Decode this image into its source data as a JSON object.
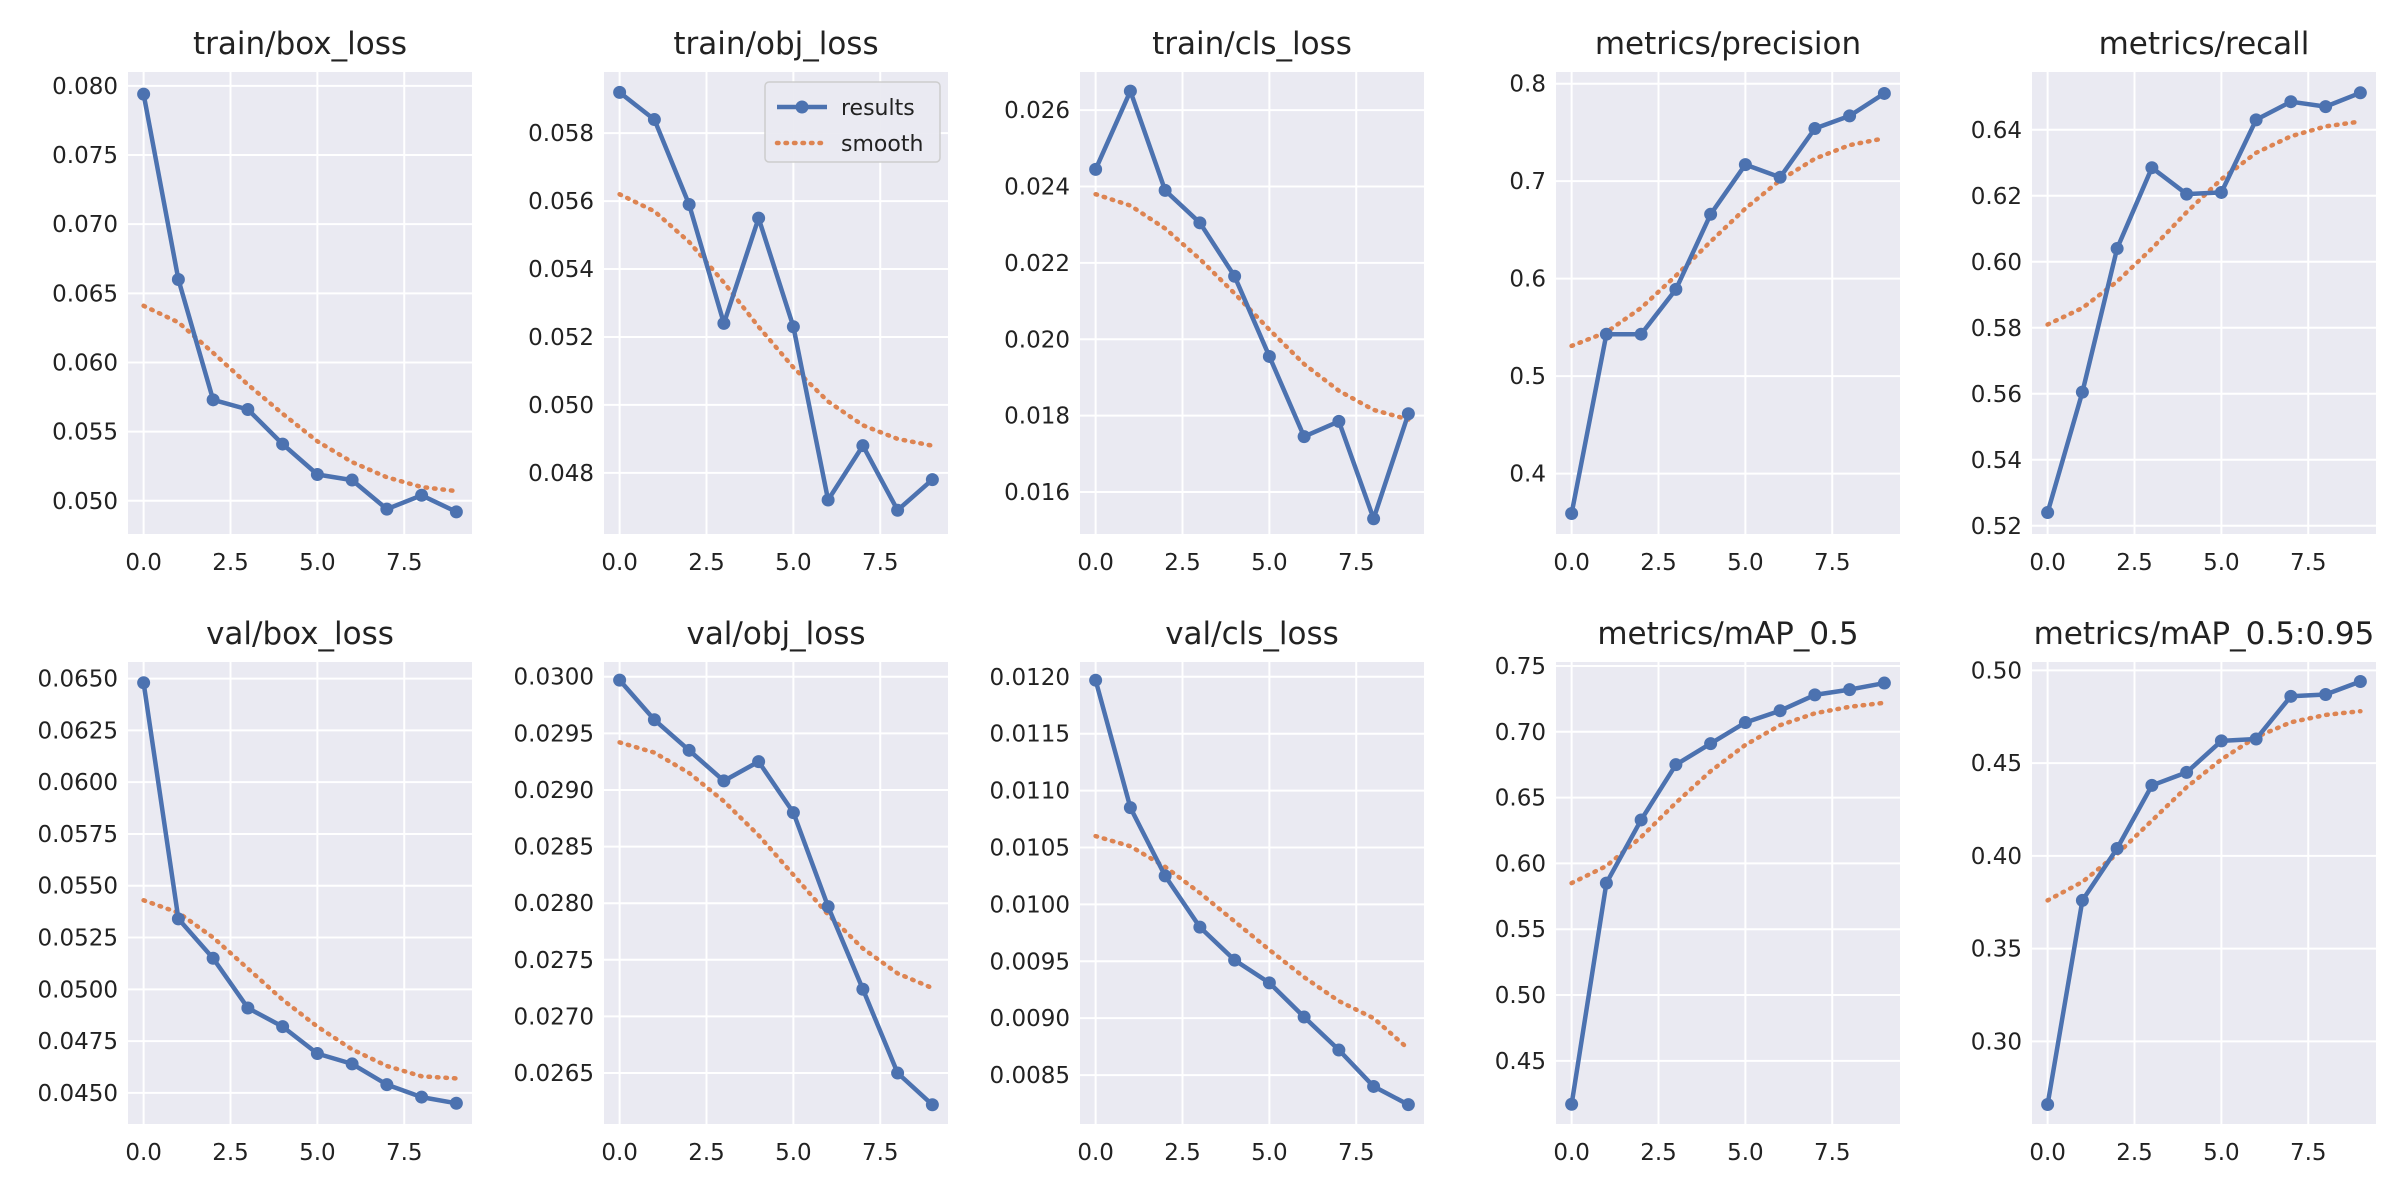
{
  "chart_data": [
    {
      "type": "line",
      "title": "train/box_loss",
      "x": [
        0,
        1,
        2,
        3,
        4,
        5,
        6,
        7,
        8,
        9
      ],
      "series": [
        {
          "name": "results",
          "values": [
            0.0794,
            0.066,
            0.0573,
            0.0566,
            0.0541,
            0.0519,
            0.0515,
            0.0494,
            0.0504,
            0.0492
          ]
        },
        {
          "name": "smooth",
          "values": [
            0.0641,
            0.0629,
            0.0607,
            0.0584,
            0.0563,
            0.0543,
            0.0528,
            0.0517,
            0.051,
            0.0507
          ]
        }
      ],
      "xlim": [
        -0.45,
        9.45
      ],
      "ylim": [
        0.0476,
        0.081
      ],
      "xticks": [
        0,
        2.5,
        5,
        7.5
      ],
      "xtick_labels": [
        "0.0",
        "2.5",
        "5.0",
        "7.5"
      ],
      "yticks": [
        0.05,
        0.055,
        0.06,
        0.065,
        0.07,
        0.075,
        0.08
      ],
      "ytick_labels": [
        "0.050",
        "0.055",
        "0.060",
        "0.065",
        "0.070",
        "0.075",
        "0.080"
      ],
      "legend": false
    },
    {
      "type": "line",
      "title": "train/obj_loss",
      "x": [
        0,
        1,
        2,
        3,
        4,
        5,
        6,
        7,
        8,
        9
      ],
      "series": [
        {
          "name": "results",
          "values": [
            0.0592,
            0.0584,
            0.0559,
            0.0524,
            0.0555,
            0.0523,
            0.0472,
            0.0488,
            0.0469,
            0.0478
          ]
        },
        {
          "name": "smooth",
          "values": [
            0.0562,
            0.0557,
            0.0548,
            0.0536,
            0.0523,
            0.0511,
            0.0501,
            0.0494,
            0.049,
            0.0488
          ]
        }
      ],
      "xlim": [
        -0.45,
        9.45
      ],
      "ylim": [
        0.0462,
        0.0598
      ],
      "xticks": [
        0,
        2.5,
        5,
        7.5
      ],
      "xtick_labels": [
        "0.0",
        "2.5",
        "5.0",
        "7.5"
      ],
      "yticks": [
        0.048,
        0.05,
        0.052,
        0.054,
        0.056,
        0.058
      ],
      "ytick_labels": [
        "0.048",
        "0.050",
        "0.052",
        "0.054",
        "0.056",
        "0.058"
      ],
      "legend": true,
      "legend_position": "top-right"
    },
    {
      "type": "line",
      "title": "train/cls_loss",
      "x": [
        0,
        1,
        2,
        3,
        4,
        5,
        6,
        7,
        8,
        9
      ],
      "series": [
        {
          "name": "results",
          "values": [
            0.02445,
            0.0265,
            0.0239,
            0.02305,
            0.02165,
            0.01955,
            0.01745,
            0.01785,
            0.0153,
            0.01805
          ]
        },
        {
          "name": "smooth",
          "values": [
            0.0238,
            0.0235,
            0.0229,
            0.0221,
            0.0212,
            0.02025,
            0.01935,
            0.01865,
            0.01815,
            0.0179
          ]
        }
      ],
      "xlim": [
        -0.45,
        9.45
      ],
      "ylim": [
        0.0149,
        0.027
      ],
      "xticks": [
        0,
        2.5,
        5,
        7.5
      ],
      "xtick_labels": [
        "0.0",
        "2.5",
        "5.0",
        "7.5"
      ],
      "yticks": [
        0.016,
        0.018,
        0.02,
        0.022,
        0.024,
        0.026
      ],
      "ytick_labels": [
        "0.016",
        "0.018",
        "0.020",
        "0.022",
        "0.024",
        "0.026"
      ],
      "legend": false
    },
    {
      "type": "line",
      "title": "metrics/precision",
      "x": [
        0,
        1,
        2,
        3,
        4,
        5,
        6,
        7,
        8,
        9
      ],
      "series": [
        {
          "name": "results",
          "values": [
            0.359,
            0.543,
            0.543,
            0.589,
            0.666,
            0.717,
            0.704,
            0.754,
            0.767,
            0.79
          ]
        },
        {
          "name": "smooth",
          "values": [
            0.531,
            0.545,
            0.57,
            0.603,
            0.638,
            0.672,
            0.701,
            0.723,
            0.737,
            0.744
          ]
        }
      ],
      "xlim": [
        -0.45,
        9.45
      ],
      "ylim": [
        0.338,
        0.812
      ],
      "xticks": [
        0,
        2.5,
        5,
        7.5
      ],
      "xtick_labels": [
        "0.0",
        "2.5",
        "5.0",
        "7.5"
      ],
      "yticks": [
        0.4,
        0.5,
        0.6,
        0.7,
        0.8
      ],
      "ytick_labels": [
        "0.4",
        "0.5",
        "0.6",
        "0.7",
        "0.8"
      ],
      "legend": false
    },
    {
      "type": "line",
      "title": "metrics/recall",
      "x": [
        0,
        1,
        2,
        3,
        4,
        5,
        6,
        7,
        8,
        9
      ],
      "series": [
        {
          "name": "results",
          "values": [
            0.524,
            0.5605,
            0.604,
            0.6285,
            0.6205,
            0.621,
            0.643,
            0.6485,
            0.647,
            0.6512
          ]
        },
        {
          "name": "smooth",
          "values": [
            0.581,
            0.586,
            0.594,
            0.604,
            0.615,
            0.625,
            0.633,
            0.638,
            0.641,
            0.6425
          ]
        }
      ],
      "xlim": [
        -0.45,
        9.45
      ],
      "ylim": [
        0.5175,
        0.6575
      ],
      "xticks": [
        0,
        2.5,
        5,
        7.5
      ],
      "xtick_labels": [
        "0.0",
        "2.5",
        "5.0",
        "7.5"
      ],
      "yticks": [
        0.52,
        0.54,
        0.56,
        0.58,
        0.6,
        0.62,
        0.64
      ],
      "ytick_labels": [
        "0.52",
        "0.54",
        "0.56",
        "0.58",
        "0.60",
        "0.62",
        "0.64"
      ],
      "legend": false
    },
    {
      "type": "line",
      "title": "val/box_loss",
      "x": [
        0,
        1,
        2,
        3,
        4,
        5,
        6,
        7,
        8,
        9
      ],
      "series": [
        {
          "name": "results",
          "values": [
            0.0648,
            0.0534,
            0.0515,
            0.0491,
            0.0482,
            0.0469,
            0.0464,
            0.0454,
            0.0448,
            0.0445
          ]
        },
        {
          "name": "smooth",
          "values": [
            0.0543,
            0.0537,
            0.0525,
            0.051,
            0.0495,
            0.0482,
            0.0471,
            0.0463,
            0.0458,
            0.0457
          ]
        }
      ],
      "xlim": [
        -0.45,
        9.45
      ],
      "ylim": [
        0.0435,
        0.0658
      ],
      "xticks": [
        0,
        2.5,
        5,
        7.5
      ],
      "xtick_labels": [
        "0.0",
        "2.5",
        "5.0",
        "7.5"
      ],
      "yticks": [
        0.045,
        0.0475,
        0.05,
        0.0525,
        0.055,
        0.0575,
        0.06,
        0.0625,
        0.065
      ],
      "ytick_labels": [
        "0.0450",
        "0.0475",
        "0.0500",
        "0.0525",
        "0.0550",
        "0.0575",
        "0.0600",
        "0.0625",
        "0.0650"
      ],
      "legend": false
    },
    {
      "type": "line",
      "title": "val/obj_loss",
      "x": [
        0,
        1,
        2,
        3,
        4,
        5,
        6,
        7,
        8,
        9
      ],
      "series": [
        {
          "name": "results",
          "values": [
            0.02997,
            0.02962,
            0.02935,
            0.02908,
            0.02925,
            0.0288,
            0.02797,
            0.02724,
            0.0265,
            0.02622
          ]
        },
        {
          "name": "smooth",
          "values": [
            0.02942,
            0.02933,
            0.02915,
            0.0289,
            0.0286,
            0.02825,
            0.0279,
            0.0276,
            0.02738,
            0.02725
          ]
        }
      ],
      "xlim": [
        -0.45,
        9.45
      ],
      "ylim": [
        0.02605,
        0.03013
      ],
      "xticks": [
        0,
        2.5,
        5,
        7.5
      ],
      "xtick_labels": [
        "0.0",
        "2.5",
        "5.0",
        "7.5"
      ],
      "yticks": [
        0.0265,
        0.027,
        0.0275,
        0.028,
        0.0285,
        0.029,
        0.0295,
        0.03
      ],
      "ytick_labels": [
        "0.0265",
        "0.0270",
        "0.0275",
        "0.0280",
        "0.0285",
        "0.0290",
        "0.0295",
        "0.0300"
      ],
      "legend": false
    },
    {
      "type": "line",
      "title": "val/cls_loss",
      "x": [
        0,
        1,
        2,
        3,
        4,
        5,
        6,
        7,
        8,
        9
      ],
      "series": [
        {
          "name": "results",
          "values": [
            0.01197,
            0.01085,
            0.01025,
            0.0098,
            0.00951,
            0.00931,
            0.00901,
            0.00872,
            0.0084,
            0.00824
          ]
        },
        {
          "name": "smooth",
          "values": [
            0.0106,
            0.01051,
            0.01033,
            0.0101,
            0.00985,
            0.0096,
            0.00936,
            0.00915,
            0.009,
            0.00873
          ]
        }
      ],
      "xlim": [
        -0.45,
        9.45
      ],
      "ylim": [
        0.00807,
        0.01213
      ],
      "xticks": [
        0,
        2.5,
        5,
        7.5
      ],
      "xtick_labels": [
        "0.0",
        "2.5",
        "5.0",
        "7.5"
      ],
      "yticks": [
        0.0085,
        0.009,
        0.0095,
        0.01,
        0.0105,
        0.011,
        0.0115,
        0.012
      ],
      "ytick_labels": [
        "0.0085",
        "0.0090",
        "0.0095",
        "0.0100",
        "0.0105",
        "0.0110",
        "0.0115",
        "0.0120"
      ],
      "legend": false
    },
    {
      "type": "line",
      "title": "metrics/mAP_0.5",
      "x": [
        0,
        1,
        2,
        3,
        4,
        5,
        6,
        7,
        8,
        9
      ],
      "series": [
        {
          "name": "results",
          "values": [
            0.417,
            0.585,
            0.633,
            0.675,
            0.691,
            0.707,
            0.716,
            0.728,
            0.732,
            0.737
          ]
        },
        {
          "name": "smooth",
          "values": [
            0.585,
            0.598,
            0.62,
            0.646,
            0.67,
            0.69,
            0.705,
            0.714,
            0.719,
            0.722
          ]
        }
      ],
      "xlim": [
        -0.45,
        9.45
      ],
      "ylim": [
        0.402,
        0.753
      ],
      "xticks": [
        0,
        2.5,
        5,
        7.5
      ],
      "xtick_labels": [
        "0.0",
        "2.5",
        "5.0",
        "7.5"
      ],
      "yticks": [
        0.45,
        0.5,
        0.55,
        0.6,
        0.65,
        0.7,
        0.75
      ],
      "ytick_labels": [
        "0.45",
        "0.50",
        "0.55",
        "0.60",
        "0.65",
        "0.70",
        "0.75"
      ],
      "legend": false
    },
    {
      "type": "line",
      "title": "metrics/mAP_0.5:0.95",
      "x": [
        0,
        1,
        2,
        3,
        4,
        5,
        6,
        7,
        8,
        9
      ],
      "series": [
        {
          "name": "results",
          "values": [
            0.266,
            0.376,
            0.404,
            0.438,
            0.445,
            0.462,
            0.463,
            0.486,
            0.487,
            0.494
          ]
        },
        {
          "name": "smooth",
          "values": [
            0.376,
            0.386,
            0.401,
            0.419,
            0.437,
            0.452,
            0.464,
            0.472,
            0.476,
            0.478
          ]
        }
      ],
      "xlim": [
        -0.45,
        9.45
      ],
      "ylim": [
        0.2555,
        0.5045
      ],
      "xticks": [
        0,
        2.5,
        5,
        7.5
      ],
      "xtick_labels": [
        "0.0",
        "2.5",
        "5.0",
        "7.5"
      ],
      "yticks": [
        0.3,
        0.35,
        0.4,
        0.45,
        0.5
      ],
      "ytick_labels": [
        "0.30",
        "0.35",
        "0.40",
        "0.45",
        "0.50"
      ],
      "legend": false
    }
  ],
  "colors": {
    "results": "#4c72b0",
    "smooth": "#dd8452",
    "panel_bg": "#eaeaf2",
    "grid": "#ffffff"
  }
}
